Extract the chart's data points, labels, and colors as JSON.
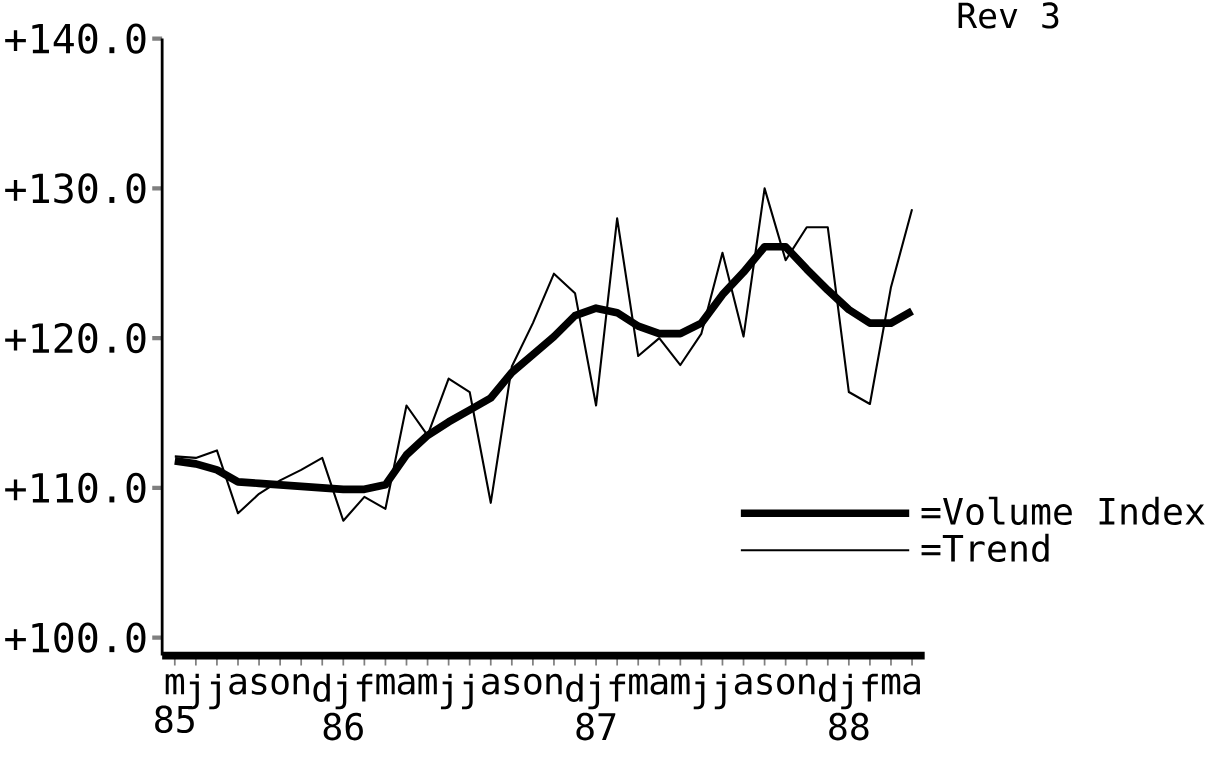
{
  "chart_data": {
    "type": "line",
    "categories": [
      "m 85",
      "j",
      "j",
      "a",
      "s",
      "o",
      "n",
      "d",
      "j 86",
      "f",
      "m",
      "a",
      "m",
      "j",
      "j",
      "a",
      "s",
      "o",
      "n",
      "d",
      "j 87",
      "f",
      "m",
      "a",
      "m",
      "j",
      "j",
      "a",
      "s",
      "o",
      "n",
      "d",
      "j 88",
      "f",
      "m",
      "a"
    ],
    "series": [
      {
        "name": "=Volume Index",
        "color": "#000000",
        "values": [
          111.8,
          111.6,
          111.2,
          110.4,
          110.3,
          110.2,
          110.1,
          110.0,
          109.9,
          109.9,
          110.2,
          112.2,
          113.5,
          114.4,
          115.2,
          116.0,
          117.7,
          118.9,
          120.1,
          121.5,
          122.0,
          121.7,
          120.8,
          120.3,
          120.3,
          121.0,
          122.9,
          124.4,
          126.1,
          126.1,
          124.6,
          123.2,
          121.9,
          121.0,
          121.0,
          121.8
        ]
      },
      {
        "name": "=Trend",
        "color": "#000000",
        "values": [
          112.1,
          112.0,
          112.5,
          108.3,
          109.6,
          110.5,
          111.2,
          112.0,
          107.8,
          109.4,
          108.6,
          115.5,
          113.5,
          117.3,
          116.4,
          109.0,
          118.1,
          121.0,
          124.3,
          123.0,
          115.5,
          128.0,
          118.8,
          120.0,
          118.2,
          120.3,
          125.7,
          120.1,
          130.0,
          125.2,
          127.4,
          127.4,
          116.4,
          115.6,
          123.4,
          128.6
        ]
      }
    ],
    "ylim": [
      98.8,
      140
    ],
    "yticks": [
      {
        "value": 100,
        "label": "+100.0"
      },
      {
        "value": 110,
        "label": "+110.0"
      },
      {
        "value": 120,
        "label": "+120.0"
      },
      {
        "value": 130,
        "label": "+130.0"
      },
      {
        "value": 140,
        "label": "+140.0"
      }
    ],
    "annotations": [
      "Rev 3"
    ],
    "legend": "right",
    "grid": false,
    "marker": "none",
    "line_style": "solid"
  }
}
